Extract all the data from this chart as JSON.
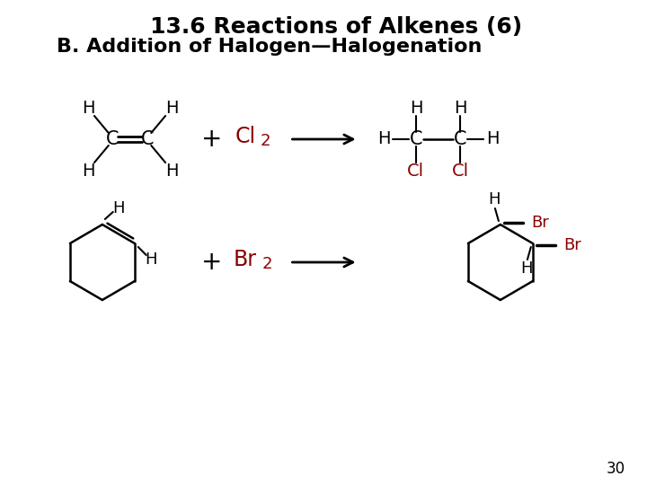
{
  "title1": "13.6 Reactions of Alkenes (6)",
  "title2": "B. Addition of Halogen—Halogenation",
  "title1_fontsize": 18,
  "title2_fontsize": 16,
  "black": "#000000",
  "dark_red": "#8B0000",
  "page_num": "30",
  "bg_color": "#ffffff"
}
